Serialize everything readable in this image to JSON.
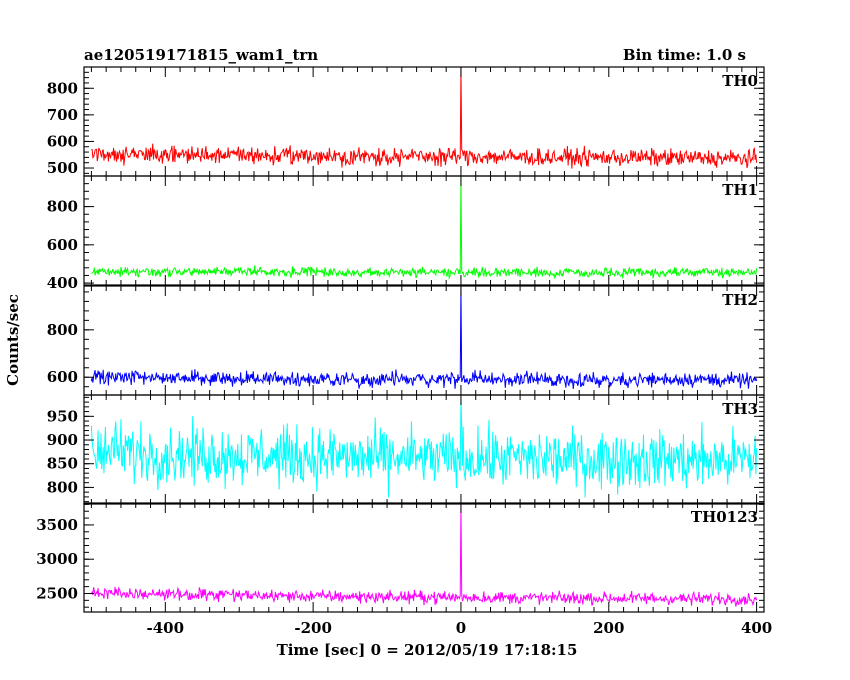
{
  "header": {
    "title": "ae120519171815_wam1_trn",
    "bin_time": "Bin time: 1.0 s"
  },
  "chart_data": {
    "type": "line",
    "ylabel": "Counts/sec",
    "xlabel": "Time [sec] 0 = 2012/05/19 17:18:15",
    "xlim": [
      -510,
      410
    ],
    "xticks": [
      -400,
      -200,
      0,
      200,
      400
    ],
    "x_range": [
      -500,
      400
    ],
    "bin_time_s": 1.0,
    "panels": [
      {
        "name": "TH0",
        "color": "#ff0000",
        "ylim": [
          470,
          880
        ],
        "yticks": [
          500,
          600,
          700,
          800
        ],
        "baseline": [
          {
            "x": -500,
            "y": 555
          },
          {
            "x": -400,
            "y": 550
          },
          {
            "x": -300,
            "y": 548
          },
          {
            "x": -200,
            "y": 545
          },
          {
            "x": -100,
            "y": 542
          },
          {
            "x": 0,
            "y": 545
          },
          {
            "x": 100,
            "y": 540
          },
          {
            "x": 200,
            "y": 540
          },
          {
            "x": 300,
            "y": 538
          },
          {
            "x": 400,
            "y": 535
          }
        ],
        "noise_amplitude": 40,
        "spike": {
          "x": 0,
          "y": 880
        }
      },
      {
        "name": "TH1",
        "color": "#00ff00",
        "ylim": [
          390,
          960
        ],
        "yticks": [
          400,
          600,
          800
        ],
        "baseline": [
          {
            "x": -500,
            "y": 460
          },
          {
            "x": -400,
            "y": 458
          },
          {
            "x": -300,
            "y": 462
          },
          {
            "x": -200,
            "y": 458
          },
          {
            "x": -100,
            "y": 455
          },
          {
            "x": 0,
            "y": 458
          },
          {
            "x": 100,
            "y": 455
          },
          {
            "x": 200,
            "y": 452
          },
          {
            "x": 300,
            "y": 455
          },
          {
            "x": 400,
            "y": 458
          }
        ],
        "noise_amplitude": 30,
        "spike": {
          "x": 0,
          "y": 960
        }
      },
      {
        "name": "TH2",
        "color": "#0000ff",
        "ylim": [
          525,
          985
        ],
        "yticks": [
          600,
          800
        ],
        "baseline": [
          {
            "x": -500,
            "y": 600
          },
          {
            "x": -400,
            "y": 598
          },
          {
            "x": -300,
            "y": 595
          },
          {
            "x": -200,
            "y": 592
          },
          {
            "x": -100,
            "y": 590
          },
          {
            "x": 0,
            "y": 592
          },
          {
            "x": 100,
            "y": 590
          },
          {
            "x": 200,
            "y": 588
          },
          {
            "x": 300,
            "y": 592
          },
          {
            "x": 400,
            "y": 585
          }
        ],
        "noise_amplitude": 38,
        "spike": {
          "x": 0,
          "y": 985
        }
      },
      {
        "name": "TH3",
        "color": "#00ffff",
        "ylim": [
          765,
          995
        ],
        "yticks": [
          800,
          850,
          900,
          950
        ],
        "baseline": [
          {
            "x": -500,
            "y": 880
          },
          {
            "x": -400,
            "y": 870
          },
          {
            "x": -300,
            "y": 868
          },
          {
            "x": -200,
            "y": 865
          },
          {
            "x": -100,
            "y": 862
          },
          {
            "x": 0,
            "y": 862
          },
          {
            "x": 100,
            "y": 860
          },
          {
            "x": 200,
            "y": 860
          },
          {
            "x": 300,
            "y": 858
          },
          {
            "x": 400,
            "y": 858
          }
        ],
        "noise_amplitude": 75,
        "spike": {
          "x": 0,
          "y": 990
        }
      },
      {
        "name": "TH0123",
        "color": "#ff00ff",
        "ylim": [
          2230,
          3820
        ],
        "yticks": [
          2500,
          3000,
          3500
        ],
        "baseline": [
          {
            "x": -500,
            "y": 2510
          },
          {
            "x": -400,
            "y": 2490
          },
          {
            "x": -300,
            "y": 2470
          },
          {
            "x": -200,
            "y": 2460
          },
          {
            "x": -100,
            "y": 2450
          },
          {
            "x": 0,
            "y": 2445
          },
          {
            "x": 100,
            "y": 2435
          },
          {
            "x": 200,
            "y": 2430
          },
          {
            "x": 300,
            "y": 2425
          },
          {
            "x": 400,
            "y": 2420
          }
        ],
        "noise_amplitude": 110,
        "spike": {
          "x": 0,
          "y": 3800
        }
      }
    ]
  }
}
